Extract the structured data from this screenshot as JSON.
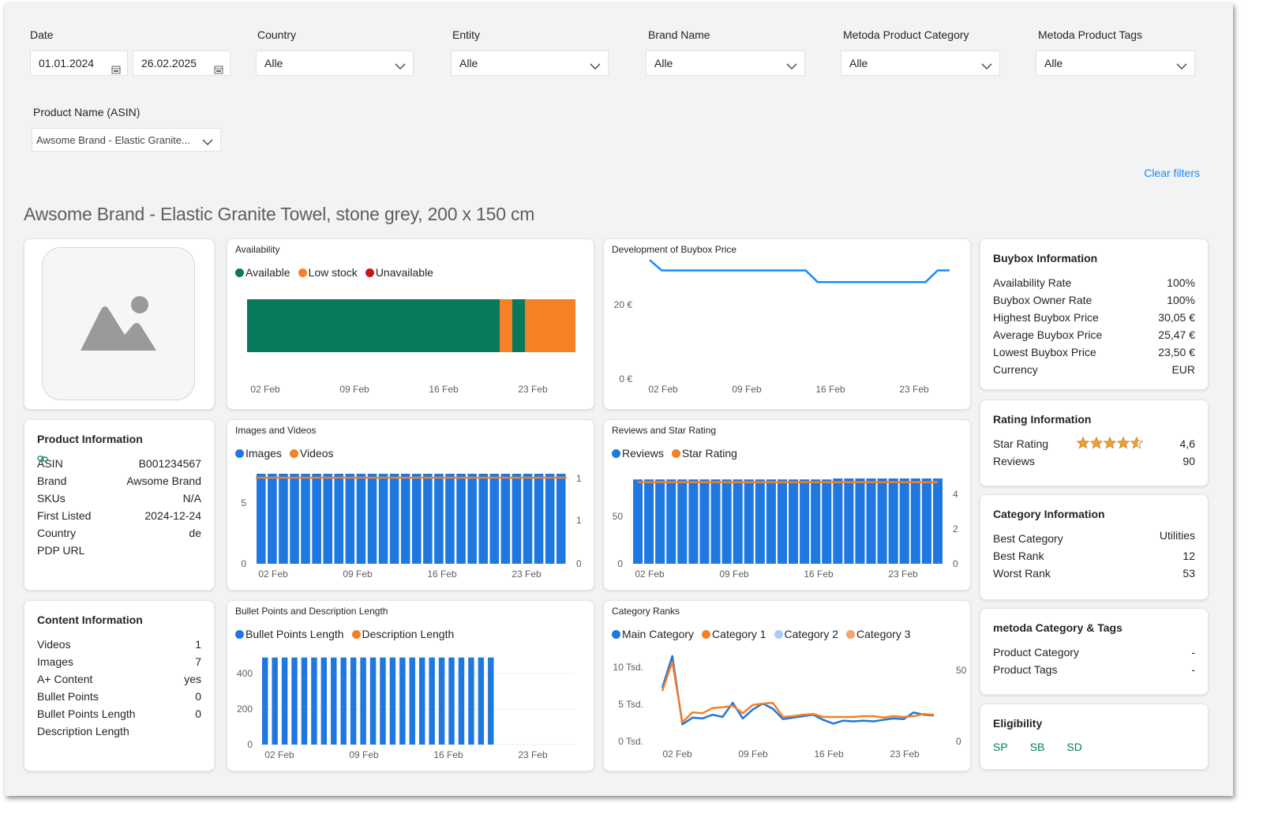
{
  "filters": {
    "date": {
      "label": "Date",
      "start": "01.01.2024",
      "end": "26.02.2025"
    },
    "country": {
      "label": "Country",
      "value": "Alle"
    },
    "entity": {
      "label": "Entity",
      "value": "Alle"
    },
    "brand": {
      "label": "Brand Name",
      "value": "Alle"
    },
    "category": {
      "label": "Metoda Product Category",
      "value": "Alle"
    },
    "tags": {
      "label": "Metoda Product Tags",
      "value": "Alle"
    },
    "product": {
      "label": "Product Name (ASIN)",
      "value": "Awsome Brand - Elastic Granite..."
    },
    "clear": "Clear filters"
  },
  "page_title": "Awsome Brand - Elastic Granite Towel, stone grey, 200 x 150 cm",
  "colors": {
    "accent": "#118dff",
    "blue": "#1f77e0",
    "orange": "#f58025",
    "green": "#077a5b",
    "red": "#c4161c",
    "lightblue": "#a9cdf5",
    "peach": "#f5a46b"
  },
  "product_info": {
    "title": "Product Information",
    "rows": [
      {
        "label": "ASIN",
        "value": "B001234567"
      },
      {
        "label": "Brand",
        "value": "Awsome Brand"
      },
      {
        "label": "SKUs",
        "value": "N/A"
      },
      {
        "label": "First Listed",
        "value": "2024-12-24"
      },
      {
        "label": "Country",
        "value": "de"
      },
      {
        "label": "PDP URL",
        "value": ""
      }
    ]
  },
  "content_info": {
    "title": "Content Information",
    "rows": [
      {
        "label": "Videos",
        "value": "1"
      },
      {
        "label": "Images",
        "value": "7"
      },
      {
        "label": "A+ Content",
        "value": "yes"
      },
      {
        "label": "Bullet Points",
        "value": "0"
      },
      {
        "label": "Bullet Points Length",
        "value": "0"
      },
      {
        "label": "Description Length",
        "value": ""
      }
    ]
  },
  "buybox_info": {
    "title": "Buybox Information",
    "rows": [
      {
        "label": "Availability Rate",
        "value": "100%"
      },
      {
        "label": "Buybox Owner Rate",
        "value": "100%"
      },
      {
        "label": "Highest Buybox Price",
        "value": "30,05 €"
      },
      {
        "label": "Average Buybox Price",
        "value": "25,47 €"
      },
      {
        "label": "Lowest Buybox Price",
        "value": "23,50 €"
      },
      {
        "label": "Currency",
        "value": "EUR"
      }
    ]
  },
  "rating_info": {
    "title": "Rating Information",
    "star_label": "Star Rating",
    "star_value": "4,6",
    "stars": 4.6,
    "reviews_label": "Reviews",
    "reviews_value": "90"
  },
  "category_info": {
    "title": "Category Information",
    "rows": [
      {
        "label": "Best Category",
        "value": "Utilities"
      },
      {
        "label": "Best Rank",
        "value": "12"
      },
      {
        "label": "Worst Rank",
        "value": "53"
      }
    ]
  },
  "metoda_info": {
    "title": "metoda Category & Tags",
    "rows": [
      {
        "label": "Product Category",
        "value": "-"
      },
      {
        "label": "Product Tags",
        "value": "-"
      }
    ]
  },
  "eligibility": {
    "title": "Eligibility",
    "items": [
      "SP",
      "SB",
      "SD"
    ]
  },
  "chart_data": [
    {
      "id": "availability",
      "type": "bar",
      "title": "Availability",
      "legend": [
        "Available",
        "Low stock",
        "Unavailable"
      ],
      "x_ticks": [
        "02 Feb",
        "09 Feb",
        "16 Feb",
        "23 Feb"
      ],
      "segments": [
        {
          "status": "Available",
          "from_day": 0,
          "to_day": 20
        },
        {
          "status": "Low stock",
          "from_day": 20,
          "to_day": 21
        },
        {
          "status": "Available",
          "from_day": 21,
          "to_day": 22
        },
        {
          "status": "Low stock",
          "from_day": 22,
          "to_day": 26
        }
      ]
    },
    {
      "id": "buybox",
      "type": "line",
      "title": "Development of Buybox Price",
      "y_ticks": [
        "0 €",
        "20 €"
      ],
      "ylim": [
        0,
        30
      ],
      "x_ticks": [
        "02 Feb",
        "09 Feb",
        "16 Feb",
        "23 Feb"
      ],
      "values": [
        28.8,
        26.3,
        26.3,
        26.3,
        26.3,
        26.3,
        26.3,
        26.3,
        26.3,
        26.3,
        26.3,
        26.3,
        26.3,
        26.3,
        23.5,
        23.5,
        23.5,
        23.5,
        23.5,
        23.5,
        23.5,
        23.5,
        23.5,
        23.5,
        26.3,
        26.3
      ]
    },
    {
      "id": "images_videos",
      "type": "bar",
      "title": "Images and Videos",
      "legend": [
        "Images",
        "Videos"
      ],
      "y_ticks_left": [
        "0",
        "5"
      ],
      "y_ticks_right": [
        "0",
        "1",
        "1"
      ],
      "x_ticks": [
        "02 Feb",
        "09 Feb",
        "16 Feb",
        "23 Feb"
      ],
      "images": [
        7,
        7,
        7,
        7,
        7,
        7,
        7,
        7,
        7,
        7,
        7,
        7,
        7,
        7,
        7,
        7,
        7,
        7,
        7,
        7,
        7,
        7,
        7,
        7,
        7,
        7,
        7,
        7
      ],
      "videos": [
        1,
        1,
        1,
        1,
        1,
        1,
        1,
        1,
        1,
        1,
        1,
        1,
        1,
        1,
        1,
        1,
        1,
        1,
        1,
        1,
        1,
        1,
        1,
        1,
        1,
        1,
        1,
        1
      ]
    },
    {
      "id": "reviews_rating",
      "type": "bar",
      "title": "Reviews and Star Rating",
      "legend": [
        "Reviews",
        "Star Rating"
      ],
      "y_ticks_left": [
        "0",
        "50"
      ],
      "y_ticks_right": [
        "0",
        "2",
        "4"
      ],
      "x_ticks": [
        "02 Feb",
        "09 Feb",
        "16 Feb",
        "23 Feb"
      ],
      "reviews": [
        89,
        89,
        89,
        89,
        89,
        89,
        89,
        89,
        89,
        89,
        89,
        89,
        89,
        89,
        89,
        89,
        89,
        89,
        90,
        90,
        90,
        90,
        90,
        90,
        90,
        90,
        90,
        90
      ],
      "rating": [
        4.6,
        4.6,
        4.6,
        4.6,
        4.6,
        4.6,
        4.6,
        4.6,
        4.6,
        4.6,
        4.6,
        4.6,
        4.6,
        4.6,
        4.6,
        4.6,
        4.6,
        4.6,
        4.6,
        4.6,
        4.6,
        4.6,
        4.6,
        4.6,
        4.6,
        4.6,
        4.6,
        4.6
      ]
    },
    {
      "id": "bullets_desc",
      "type": "bar",
      "title": "Bullet Points and Description Length",
      "legend": [
        "Bullet Points Length",
        "Description Length"
      ],
      "y_ticks": [
        "0",
        "200",
        "400"
      ],
      "x_ticks": [
        "02 Feb",
        "09 Feb",
        "16 Feb",
        "23 Feb"
      ],
      "bullet_points": [
        490,
        490,
        490,
        490,
        490,
        490,
        490,
        490,
        490,
        490,
        490,
        490,
        490,
        490,
        490,
        490,
        490,
        490,
        490,
        490,
        490,
        490,
        490,
        490,
        0,
        0,
        0,
        0,
        0,
        0,
        0,
        0
      ]
    },
    {
      "id": "category_ranks",
      "type": "line",
      "title": "Category Ranks",
      "legend": [
        "Main Category",
        "Category 1",
        "Category 2",
        "Category 3"
      ],
      "y_ticks_left": [
        "0 Tsd.",
        "5 Tsd.",
        "10 Tsd."
      ],
      "y_ticks_right": [
        "0",
        "50"
      ],
      "x_ticks": [
        "02 Feb",
        "09 Feb",
        "16 Feb",
        "23 Feb"
      ],
      "main": [
        7200,
        11500,
        2300,
        3200,
        3100,
        3600,
        3300,
        5200,
        3100,
        4300,
        5100,
        4400,
        3000,
        3200,
        3400,
        3600,
        2900,
        2400,
        2800,
        2700,
        2800,
        2700,
        2900,
        3100,
        3000,
        3900,
        3600,
        3500
      ],
      "category1": [
        6800,
        10700,
        2600,
        3900,
        3800,
        4500,
        4600,
        4800,
        3800,
        4900,
        5100,
        5200,
        3300,
        3400,
        3600,
        3700,
        3300,
        3300,
        3300,
        3300,
        3400,
        3400,
        3200,
        3400,
        3300,
        3400,
        3700,
        3600
      ]
    }
  ]
}
